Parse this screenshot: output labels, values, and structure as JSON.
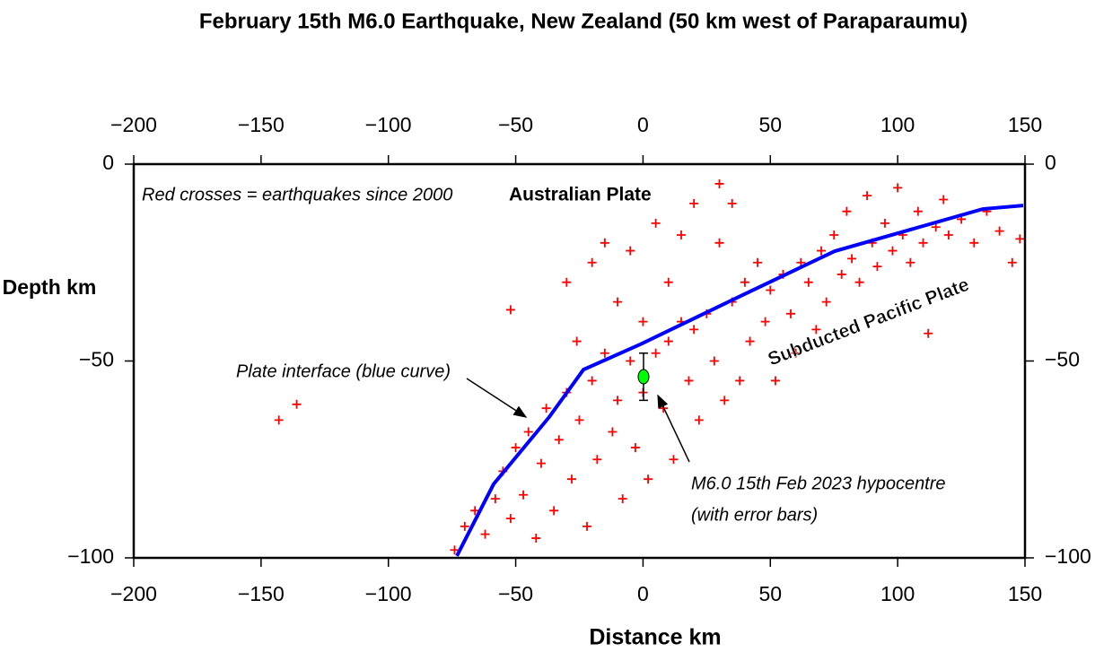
{
  "chart_data": {
    "type": "scatter",
    "title": "February 15th M6.0 Earthquake, New Zealand (50 km west of Paraparaumu)",
    "x_label": "Distance km",
    "y_label": "Depth km",
    "xlim": [
      -200,
      150
    ],
    "ylim": [
      -100,
      0
    ],
    "xticks": [
      {
        "value": -200,
        "label": "−200"
      },
      {
        "value": -150,
        "label": "−150"
      },
      {
        "value": -100,
        "label": "−100"
      },
      {
        "value": -50,
        "label": "−50"
      },
      0,
      50,
      100,
      150
    ],
    "yticks": [
      {
        "value": -100,
        "label": "−100"
      },
      {
        "value": -50,
        "label": "−50"
      },
      0
    ],
    "annotations": [
      "Red crosses = earthquakes since 2000",
      "Australian Plate",
      "Subducted Pacific Plate",
      "Plate interface (blue curve)",
      "M6.0 15th Feb 2023  hypocentre",
      "(with error bars)"
    ],
    "series": [
      {
        "type": "scatter",
        "color": "#ff0000",
        "x": [
          -143,
          -136,
          -74,
          -70,
          -66,
          -62,
          -58,
          -55,
          -52,
          -50,
          -47,
          -45,
          -42,
          -40,
          -38,
          -35,
          -33,
          -30,
          -30,
          -28,
          -26,
          -25,
          -22,
          -20,
          -20,
          -18,
          -15,
          -15,
          -12,
          -10,
          -10,
          -8,
          -5,
          -5,
          -3,
          0,
          0,
          2,
          5,
          5,
          8,
          10,
          10,
          12,
          15,
          15,
          18,
          20,
          20,
          22,
          25,
          28,
          30,
          30,
          32,
          35,
          35,
          38,
          40,
          42,
          45,
          48,
          50,
          52,
          55,
          58,
          60,
          62,
          65,
          68,
          70,
          72,
          75,
          78,
          80,
          82,
          85,
          88,
          90,
          92,
          95,
          98,
          100,
          102,
          105,
          108,
          110,
          112,
          115,
          118,
          120,
          125,
          130,
          135,
          140,
          145,
          148,
          -52
        ],
        "y": [
          -65,
          -61,
          -98,
          -92,
          -88,
          -94,
          -85,
          -78,
          -90,
          -72,
          -84,
          -68,
          -95,
          -76,
          -62,
          -88,
          -70,
          -58,
          -30,
          -80,
          -45,
          -65,
          -92,
          -55,
          -25,
          -75,
          -48,
          -20,
          -68,
          -60,
          -35,
          -85,
          -50,
          -22,
          -72,
          -58,
          -40,
          -80,
          -48,
          -15,
          -62,
          -45,
          -30,
          -75,
          -40,
          -18,
          -55,
          -42,
          -10,
          -65,
          -38,
          -50,
          -5,
          -20,
          -60,
          -35,
          -10,
          -55,
          -30,
          -45,
          -25,
          -40,
          -32,
          -55,
          -28,
          -38,
          -48,
          -25,
          -30,
          -42,
          -22,
          -35,
          -18,
          -28,
          -12,
          -24,
          -30,
          -8,
          -20,
          -26,
          -15,
          -22,
          -6,
          -18,
          -25,
          -12,
          -20,
          -43,
          -16,
          -9,
          -18,
          -14,
          -20,
          -12,
          -17,
          -25,
          -19,
          -37
        ]
      },
      {
        "type": "line",
        "color": "#0000ff",
        "x": [
          -73.1,
          -58.7,
          -36.8,
          -23.4,
          -0.5,
          38.3,
          75.3,
          133.4,
          149.3
        ],
        "y": [
          -99.5,
          -81.3,
          -64.2,
          -52.2,
          -45.6,
          -33.5,
          -22.1,
          -11.4,
          -10.5
        ]
      },
      {
        "type": "errorpoint",
        "color": "#00ff00",
        "x": [
          0.2
        ],
        "y": [
          -54
        ],
        "yerr": [
          6
        ]
      }
    ]
  }
}
